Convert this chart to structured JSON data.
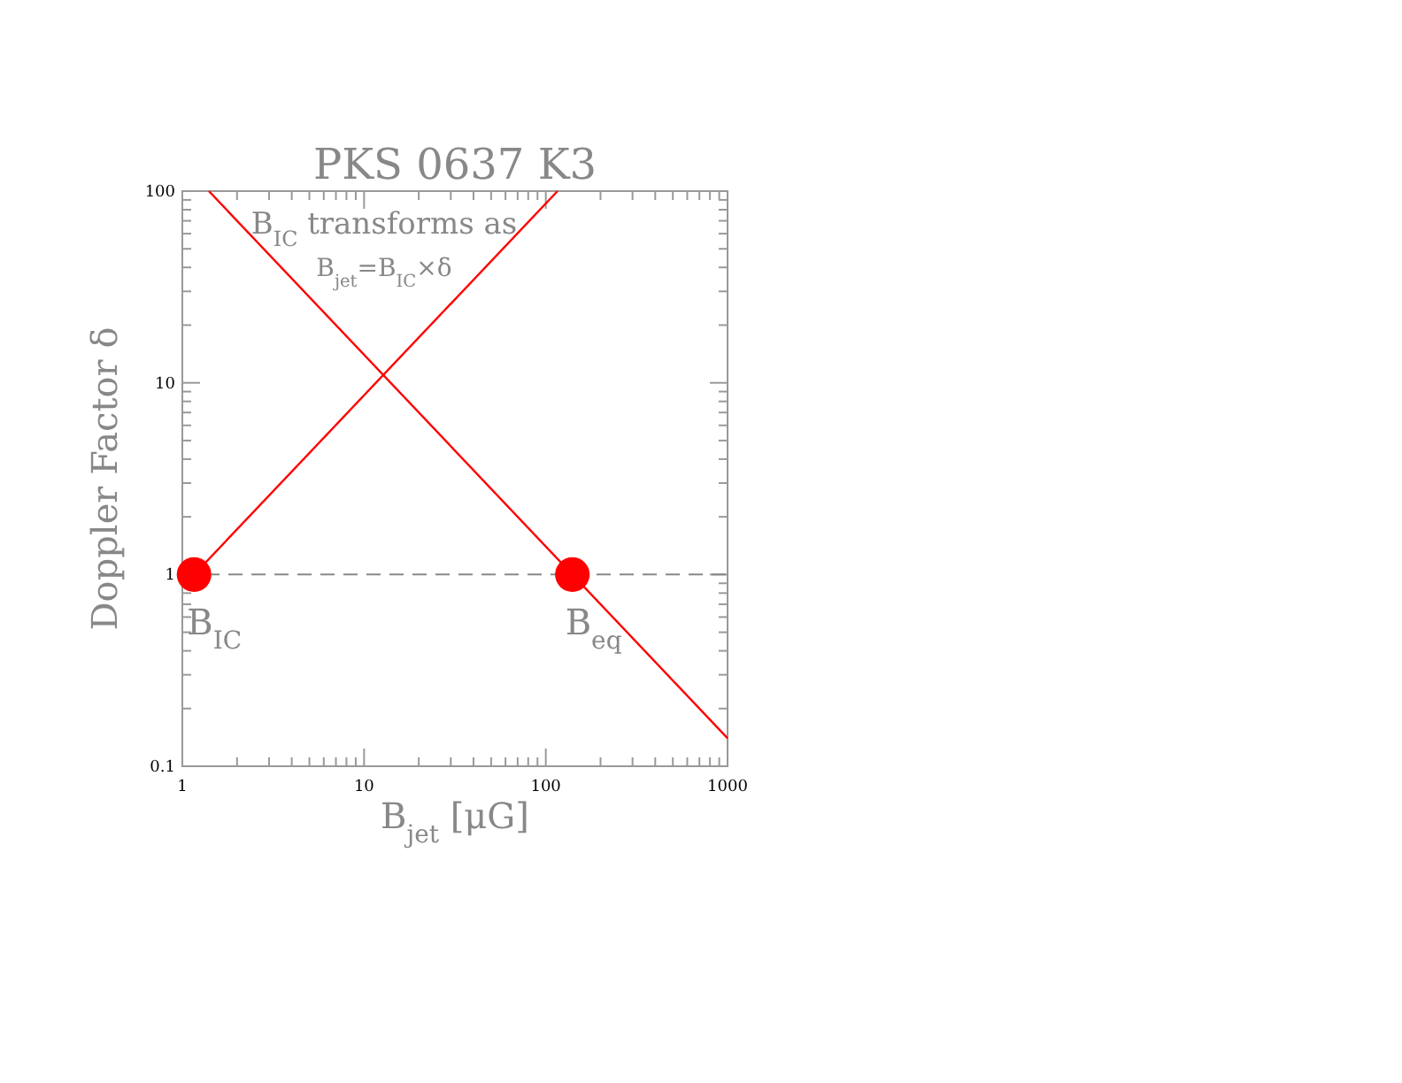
{
  "chart_data": {
    "type": "line",
    "title": "PKS 0637 K3",
    "xlabel": "B$_{jet}$ [μG]",
    "ylabel": "Doppler Factor δ",
    "log": "xy",
    "xlim": [
      1,
      1000
    ],
    "ylim": [
      0.1,
      100
    ],
    "xticks": [
      1,
      {
        "value": 2,
        "label": null
      },
      {
        "value": 3,
        "label": null
      },
      {
        "value": 4,
        "label": null
      },
      {
        "value": 5,
        "label": null
      },
      {
        "value": 6,
        "label": null
      },
      {
        "value": 7,
        "label": null
      },
      {
        "value": 8,
        "label": null
      },
      {
        "value": 9,
        "label": null
      },
      10,
      {
        "value": 20,
        "label": null
      },
      {
        "value": 30,
        "label": null
      },
      {
        "value": 40,
        "label": null
      },
      {
        "value": 50,
        "label": null
      },
      {
        "value": 60,
        "label": null
      },
      {
        "value": 70,
        "label": null
      },
      {
        "value": 80,
        "label": null
      },
      {
        "value": 90,
        "label": null
      },
      100,
      {
        "value": 200,
        "label": null
      },
      {
        "value": 300,
        "label": null
      },
      {
        "value": 400,
        "label": null
      },
      {
        "value": 500,
        "label": null
      },
      {
        "value": 600,
        "label": null
      },
      {
        "value": 700,
        "label": null
      },
      {
        "value": 800,
        "label": null
      },
      {
        "value": 900,
        "label": null
      },
      1000
    ],
    "yticks": [
      0.1,
      {
        "value": 0.2,
        "label": null
      },
      {
        "value": 0.3,
        "label": null
      },
      {
        "value": 0.4,
        "label": null
      },
      {
        "value": 0.5,
        "label": null
      },
      {
        "value": 0.6,
        "label": null
      },
      {
        "value": 0.7,
        "label": null
      },
      {
        "value": 0.8,
        "label": null
      },
      {
        "value": 0.9,
        "label": null
      },
      1,
      {
        "value": 2,
        "label": null
      },
      {
        "value": 3,
        "label": null
      },
      {
        "value": 4,
        "label": null
      },
      {
        "value": 5,
        "label": null
      },
      {
        "value": 6,
        "label": null
      },
      {
        "value": 7,
        "label": null
      },
      {
        "value": 8,
        "label": null
      },
      {
        "value": 9,
        "label": null
      },
      10,
      {
        "value": 20,
        "label": null
      },
      {
        "value": 30,
        "label": null
      },
      {
        "value": 40,
        "label": null
      },
      {
        "value": 50,
        "label": null
      },
      {
        "value": 60,
        "label": null
      },
      {
        "value": 70,
        "label": null
      },
      {
        "value": 80,
        "label": null
      },
      {
        "value": 90,
        "label": null
      },
      100
    ],
    "grid": false,
    "line_style": "solid",
    "series": [
      {
        "color": "#ff0000",
        "x": [
          1,
          116
        ],
        "values": [
          0.86,
          100
        ]
      },
      {
        "color": "#ff0000",
        "x": [
          1.4,
          1000
        ],
        "values": [
          100,
          0.14
        ]
      },
      {
        "type": "scatter",
        "color": "#ff0000",
        "marker": "circle",
        "x": [
          1.16,
          140
        ],
        "values": [
          1,
          1
        ]
      }
    ],
    "ref_lines": [
      {
        "axis": "y",
        "value": 1,
        "color": "#888888",
        "line_style": "dashed"
      }
    ],
    "annotations": [
      "B$_{IC}$ transforms as",
      "B$_{jet}$=B$_{IC}$×δ",
      {
        "text": "B$_{IC}$",
        "x": 1.16,
        "y": 1
      },
      {
        "text": "B$_{eq}$",
        "x": 140,
        "y": 1
      }
    ]
  }
}
